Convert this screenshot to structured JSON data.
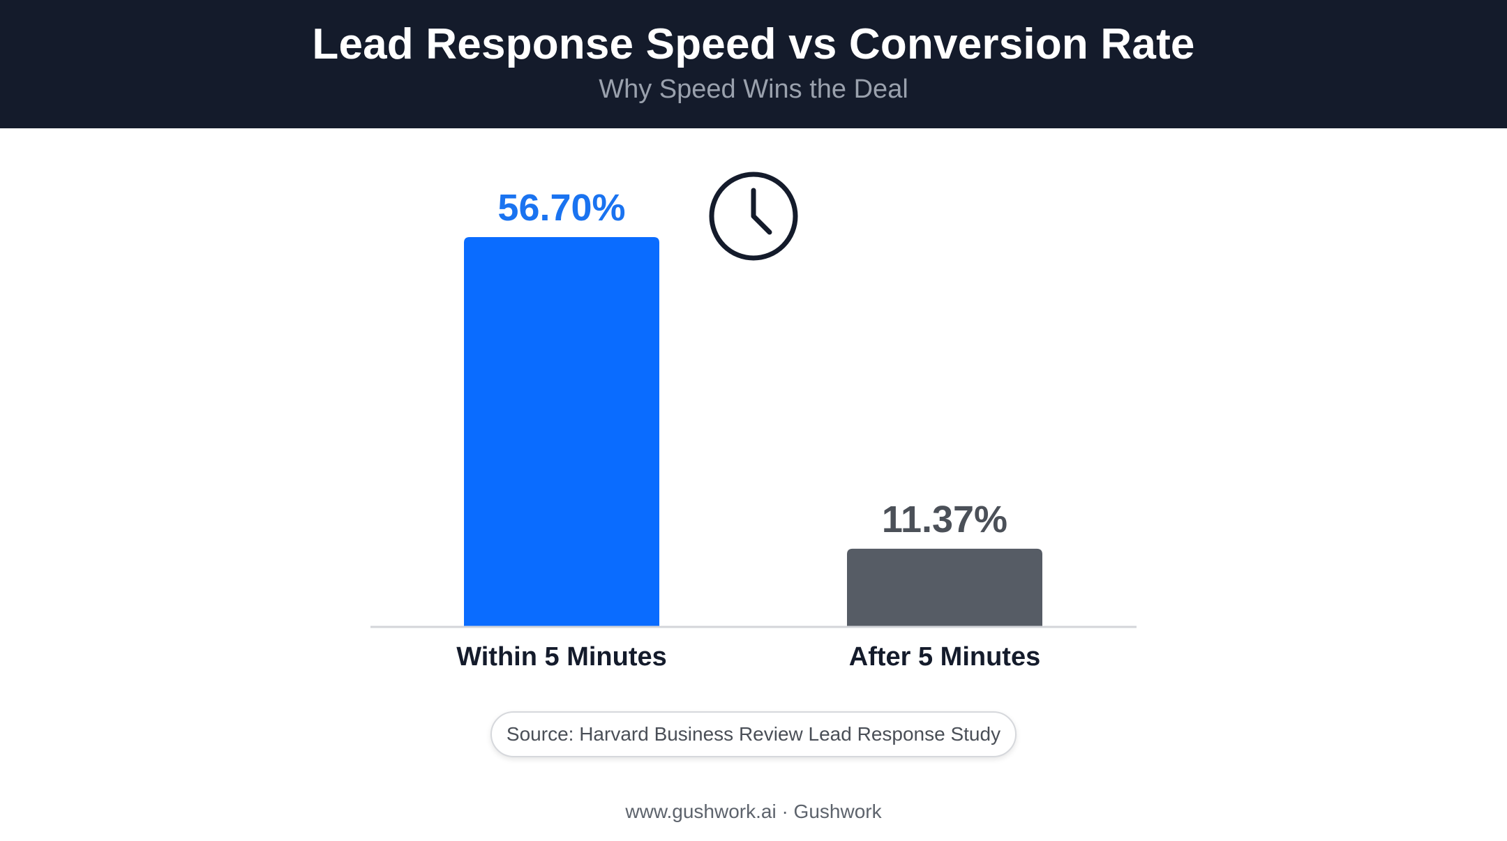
{
  "header": {
    "title": "Lead Response Speed vs Conversion Rate",
    "subtitle": "Why Speed Wins the Deal"
  },
  "chart_data": {
    "type": "bar",
    "categories": [
      "Within 5 Minutes",
      "After 5 Minutes"
    ],
    "values": [
      56.7,
      11.37
    ],
    "value_labels": [
      "56.70%",
      "11.37%"
    ],
    "bar_colors": [
      "#0a6cff",
      "#565c65"
    ],
    "label_colors": [
      "#1a73f0",
      "#4b5058"
    ],
    "ylim": [
      0,
      56.7
    ],
    "grid": false,
    "legend": "none"
  },
  "decoration": {
    "icon": "clock-icon"
  },
  "source": "Source: Harvard Business Review Lead Response Study",
  "footer": "www.gushwork.ai · Gushwork"
}
